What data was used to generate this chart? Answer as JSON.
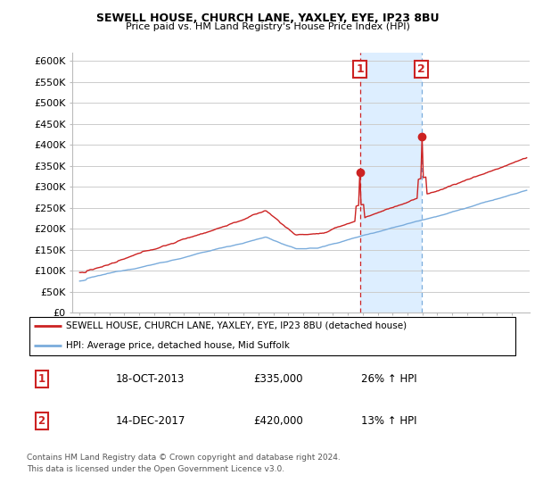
{
  "title1": "SEWELL HOUSE, CHURCH LANE, YAXLEY, EYE, IP23 8BU",
  "title2": "Price paid vs. HM Land Registry's House Price Index (HPI)",
  "ylim": [
    0,
    620000
  ],
  "yticks": [
    0,
    50000,
    100000,
    150000,
    200000,
    250000,
    300000,
    350000,
    400000,
    450000,
    500000,
    550000,
    600000
  ],
  "ytick_labels": [
    "£0",
    "£50K",
    "£100K",
    "£150K",
    "£200K",
    "£250K",
    "£300K",
    "£350K",
    "£400K",
    "£450K",
    "£500K",
    "£550K",
    "£600K"
  ],
  "hpi_color": "#7aacdc",
  "price_color": "#cc2222",
  "shade_color": "#ddeeff",
  "annotation1_date": 2013.8,
  "annotation1_price": 335000,
  "annotation2_date": 2017.95,
  "annotation2_price": 420000,
  "legend_line1": "SEWELL HOUSE, CHURCH LANE, YAXLEY, EYE, IP23 8BU (detached house)",
  "legend_line2": "HPI: Average price, detached house, Mid Suffolk",
  "table_row1": [
    "1",
    "18-OCT-2013",
    "£335,000",
    "26% ↑ HPI"
  ],
  "table_row2": [
    "2",
    "14-DEC-2017",
    "£420,000",
    "13% ↑ HPI"
  ],
  "footnote": "Contains HM Land Registry data © Crown copyright and database right 2024.\nThis data is licensed under the Open Government Licence v3.0.",
  "background_color": "#ffffff",
  "grid_color": "#cccccc",
  "xlim_start": 1994.5,
  "xlim_end": 2025.2
}
